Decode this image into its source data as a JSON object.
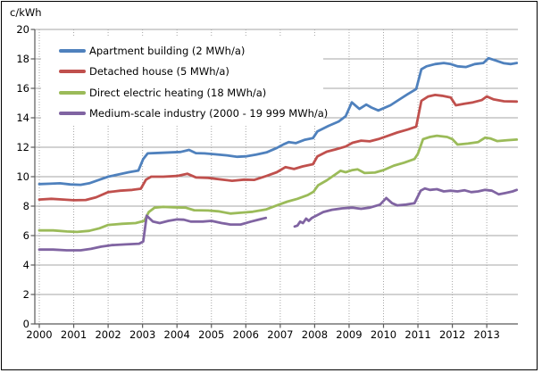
{
  "chart_data": {
    "type": "line",
    "title": "",
    "ylabel": "c/kWh",
    "xlabel": "",
    "ylim": [
      0,
      20
    ],
    "xlim": [
      2000,
      2013.92
    ],
    "y_ticks": [
      0,
      2,
      4,
      6,
      8,
      10,
      12,
      14,
      16,
      18,
      20
    ],
    "x_ticks": [
      2000,
      2001,
      2002,
      2003,
      2004,
      2005,
      2006,
      2007,
      2008,
      2009,
      2010,
      2011,
      2012,
      2013
    ],
    "grid_horizontal": "solid",
    "grid_vertical": "dotted",
    "legend_position": "upper-left-inside",
    "background": "#FFFFFF",
    "style": {
      "axis_color": "#595959",
      "grid_color": "#A6A6A6"
    },
    "series": [
      {
        "name": "Apartment building (2 MWh/a)",
        "key": "apartment-building",
        "color": "#4F81BD",
        "segments": [
          [
            [
              2000.0,
              9.5
            ],
            [
              2000.3,
              9.52
            ],
            [
              2000.6,
              9.55
            ],
            [
              2000.9,
              9.47
            ],
            [
              2001.2,
              9.45
            ],
            [
              2001.45,
              9.55
            ],
            [
              2001.7,
              9.75
            ],
            [
              2002.0,
              10.0
            ],
            [
              2002.3,
              10.15
            ],
            [
              2002.6,
              10.3
            ],
            [
              2002.88,
              10.42
            ],
            [
              2003.02,
              11.2
            ],
            [
              2003.15,
              11.58
            ],
            [
              2003.5,
              11.62
            ],
            [
              2003.8,
              11.65
            ],
            [
              2004.1,
              11.68
            ],
            [
              2004.35,
              11.82
            ],
            [
              2004.55,
              11.6
            ],
            [
              2004.8,
              11.58
            ],
            [
              2005.1,
              11.52
            ],
            [
              2005.45,
              11.45
            ],
            [
              2005.75,
              11.35
            ],
            [
              2006.0,
              11.38
            ],
            [
              2006.3,
              11.5
            ],
            [
              2006.6,
              11.65
            ],
            [
              2006.9,
              11.95
            ],
            [
              2007.1,
              12.2
            ],
            [
              2007.25,
              12.35
            ],
            [
              2007.45,
              12.28
            ],
            [
              2007.7,
              12.5
            ],
            [
              2007.95,
              12.62
            ],
            [
              2008.08,
              13.08
            ],
            [
              2008.4,
              13.45
            ],
            [
              2008.7,
              13.75
            ],
            [
              2008.9,
              14.1
            ],
            [
              2009.08,
              15.05
            ],
            [
              2009.3,
              14.6
            ],
            [
              2009.5,
              14.9
            ],
            [
              2009.65,
              14.7
            ],
            [
              2009.85,
              14.5
            ],
            [
              2010.0,
              14.65
            ],
            [
              2010.2,
              14.85
            ],
            [
              2010.5,
              15.3
            ],
            [
              2010.7,
              15.6
            ],
            [
              2010.95,
              15.95
            ],
            [
              2011.1,
              17.3
            ],
            [
              2011.25,
              17.5
            ],
            [
              2011.5,
              17.65
            ],
            [
              2011.75,
              17.72
            ],
            [
              2011.95,
              17.65
            ],
            [
              2012.15,
              17.5
            ],
            [
              2012.4,
              17.45
            ],
            [
              2012.65,
              17.65
            ],
            [
              2012.9,
              17.72
            ],
            [
              2013.05,
              18.05
            ],
            [
              2013.25,
              17.9
            ],
            [
              2013.5,
              17.7
            ],
            [
              2013.7,
              17.65
            ],
            [
              2013.87,
              17.72
            ]
          ]
        ]
      },
      {
        "name": "Detached house (5 MWh/a)",
        "key": "detached-house",
        "color": "#C0504D",
        "segments": [
          [
            [
              2000.0,
              8.45
            ],
            [
              2000.35,
              8.5
            ],
            [
              2000.7,
              8.45
            ],
            [
              2001.0,
              8.4
            ],
            [
              2001.35,
              8.42
            ],
            [
              2001.65,
              8.6
            ],
            [
              2002.0,
              8.95
            ],
            [
              2002.35,
              9.05
            ],
            [
              2002.7,
              9.1
            ],
            [
              2002.95,
              9.18
            ],
            [
              2003.1,
              9.8
            ],
            [
              2003.25,
              10.0
            ],
            [
              2003.6,
              10.0
            ],
            [
              2004.0,
              10.05
            ],
            [
              2004.3,
              10.2
            ],
            [
              2004.55,
              9.95
            ],
            [
              2004.9,
              9.92
            ],
            [
              2005.25,
              9.82
            ],
            [
              2005.6,
              9.72
            ],
            [
              2005.95,
              9.8
            ],
            [
              2006.25,
              9.78
            ],
            [
              2006.6,
              10.05
            ],
            [
              2006.9,
              10.3
            ],
            [
              2007.15,
              10.65
            ],
            [
              2007.4,
              10.52
            ],
            [
              2007.65,
              10.7
            ],
            [
              2007.95,
              10.85
            ],
            [
              2008.08,
              11.38
            ],
            [
              2008.35,
              11.7
            ],
            [
              2008.6,
              11.85
            ],
            [
              2008.9,
              12.05
            ],
            [
              2009.1,
              12.3
            ],
            [
              2009.35,
              12.45
            ],
            [
              2009.6,
              12.4
            ],
            [
              2009.85,
              12.55
            ],
            [
              2010.1,
              12.75
            ],
            [
              2010.4,
              13.0
            ],
            [
              2010.7,
              13.2
            ],
            [
              2010.95,
              13.4
            ],
            [
              2011.1,
              15.15
            ],
            [
              2011.3,
              15.45
            ],
            [
              2011.5,
              15.55
            ],
            [
              2011.7,
              15.5
            ],
            [
              2011.95,
              15.38
            ],
            [
              2012.1,
              14.85
            ],
            [
              2012.35,
              14.95
            ],
            [
              2012.6,
              15.05
            ],
            [
              2012.85,
              15.2
            ],
            [
              2013.0,
              15.45
            ],
            [
              2013.2,
              15.25
            ],
            [
              2013.5,
              15.12
            ],
            [
              2013.87,
              15.1
            ]
          ]
        ]
      },
      {
        "name": "Direct electric heating (18 MWh/a)",
        "key": "direct-electric-heating",
        "color": "#9BBB59",
        "segments": [
          [
            [
              2000.0,
              6.35
            ],
            [
              2000.4,
              6.35
            ],
            [
              2000.8,
              6.28
            ],
            [
              2001.1,
              6.25
            ],
            [
              2001.45,
              6.32
            ],
            [
              2001.75,
              6.5
            ],
            [
              2002.0,
              6.72
            ],
            [
              2002.4,
              6.8
            ],
            [
              2002.8,
              6.85
            ],
            [
              2003.05,
              7.0
            ],
            [
              2003.18,
              7.6
            ],
            [
              2003.35,
              7.9
            ],
            [
              2003.6,
              7.95
            ],
            [
              2003.9,
              7.92
            ],
            [
              2004.25,
              7.9
            ],
            [
              2004.5,
              7.72
            ],
            [
              2004.9,
              7.7
            ],
            [
              2005.2,
              7.65
            ],
            [
              2005.55,
              7.5
            ],
            [
              2005.85,
              7.55
            ],
            [
              2006.2,
              7.62
            ],
            [
              2006.6,
              7.78
            ],
            [
              2006.9,
              8.05
            ],
            [
              2007.2,
              8.3
            ],
            [
              2007.5,
              8.5
            ],
            [
              2007.8,
              8.75
            ],
            [
              2007.97,
              8.98
            ],
            [
              2008.1,
              9.42
            ],
            [
              2008.35,
              9.75
            ],
            [
              2008.6,
              10.15
            ],
            [
              2008.75,
              10.4
            ],
            [
              2008.9,
              10.3
            ],
            [
              2009.1,
              10.45
            ],
            [
              2009.25,
              10.5
            ],
            [
              2009.45,
              10.25
            ],
            [
              2009.75,
              10.28
            ],
            [
              2010.0,
              10.45
            ],
            [
              2010.3,
              10.75
            ],
            [
              2010.6,
              10.95
            ],
            [
              2010.9,
              11.2
            ],
            [
              2011.0,
              11.55
            ],
            [
              2011.15,
              12.55
            ],
            [
              2011.35,
              12.7
            ],
            [
              2011.55,
              12.78
            ],
            [
              2011.85,
              12.7
            ],
            [
              2012.0,
              12.55
            ],
            [
              2012.15,
              12.18
            ],
            [
              2012.45,
              12.25
            ],
            [
              2012.75,
              12.35
            ],
            [
              2012.95,
              12.65
            ],
            [
              2013.1,
              12.6
            ],
            [
              2013.3,
              12.42
            ],
            [
              2013.6,
              12.48
            ],
            [
              2013.87,
              12.52
            ]
          ]
        ]
      },
      {
        "name": "Medium-scale industry (2000 - 19 999 MWh/a)",
        "key": "medium-scale-industry",
        "color": "#8064A2",
        "segments": [
          [
            [
              2000.0,
              5.05
            ],
            [
              2000.4,
              5.05
            ],
            [
              2000.8,
              5.0
            ],
            [
              2001.2,
              5.0
            ],
            [
              2001.5,
              5.1
            ],
            [
              2001.8,
              5.25
            ],
            [
              2002.1,
              5.35
            ],
            [
              2002.5,
              5.4
            ],
            [
              2002.9,
              5.45
            ],
            [
              2003.02,
              5.6
            ],
            [
              2003.12,
              7.35
            ],
            [
              2003.3,
              6.95
            ],
            [
              2003.5,
              6.85
            ],
            [
              2003.75,
              7.0
            ],
            [
              2004.0,
              7.1
            ],
            [
              2004.2,
              7.08
            ],
            [
              2004.4,
              6.95
            ],
            [
              2004.75,
              6.95
            ],
            [
              2005.0,
              7.0
            ],
            [
              2005.3,
              6.85
            ],
            [
              2005.55,
              6.75
            ],
            [
              2005.85,
              6.75
            ],
            [
              2006.15,
              6.95
            ],
            [
              2006.4,
              7.1
            ],
            [
              2006.58,
              7.2
            ]
          ],
          [
            [
              2007.42,
              6.62
            ],
            [
              2007.5,
              6.68
            ],
            [
              2007.58,
              6.95
            ],
            [
              2007.66,
              6.85
            ],
            [
              2007.75,
              7.15
            ],
            [
              2007.83,
              7.0
            ],
            [
              2007.92,
              7.2
            ],
            [
              2008.0,
              7.3
            ],
            [
              2008.25,
              7.6
            ],
            [
              2008.5,
              7.75
            ],
            [
              2008.8,
              7.85
            ],
            [
              2009.1,
              7.9
            ],
            [
              2009.35,
              7.82
            ],
            [
              2009.6,
              7.9
            ],
            [
              2009.9,
              8.1
            ],
            [
              2010.08,
              8.55
            ],
            [
              2010.25,
              8.2
            ],
            [
              2010.4,
              8.05
            ],
            [
              2010.65,
              8.1
            ],
            [
              2010.9,
              8.2
            ],
            [
              2011.08,
              9.05
            ],
            [
              2011.2,
              9.2
            ],
            [
              2011.35,
              9.1
            ],
            [
              2011.55,
              9.15
            ],
            [
              2011.75,
              9.0
            ],
            [
              2011.95,
              9.05
            ],
            [
              2012.15,
              9.0
            ],
            [
              2012.35,
              9.08
            ],
            [
              2012.55,
              8.95
            ],
            [
              2012.75,
              9.0
            ],
            [
              2012.95,
              9.1
            ],
            [
              2013.15,
              9.05
            ],
            [
              2013.35,
              8.8
            ],
            [
              2013.55,
              8.9
            ],
            [
              2013.75,
              9.0
            ],
            [
              2013.87,
              9.1
            ]
          ]
        ]
      }
    ]
  }
}
